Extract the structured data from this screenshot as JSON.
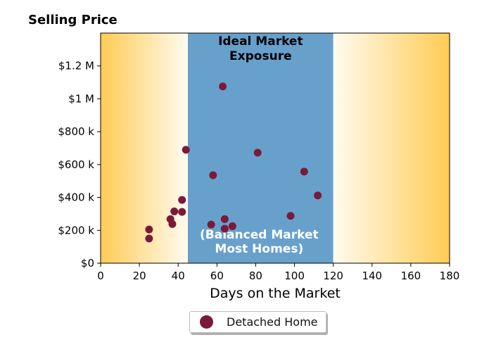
{
  "title": "Selling Price",
  "colors": {
    "point": "#7a1a3a",
    "ideal_band": "#68a0cc",
    "warm_edge": "#ffcc55",
    "warm_fade": "#fffbf0"
  },
  "chart_data": {
    "type": "scatter",
    "title": "Selling Price",
    "xlabel": "Days on the Market",
    "ylabel": "",
    "xlim": [
      0,
      180
    ],
    "ylim": [
      0,
      1400000
    ],
    "xticks": [
      0,
      20,
      40,
      60,
      80,
      100,
      120,
      140,
      160,
      180
    ],
    "yticks": [
      0,
      200000,
      400000,
      600000,
      800000,
      1000000,
      1200000
    ],
    "ytick_labels": [
      "$0",
      "$200 k",
      "$400 k",
      "$600 k",
      "$800 k",
      "$1 M",
      "$1.2 M"
    ],
    "grid": false,
    "legend_position": "bottom-center",
    "regions": [
      {
        "x_start": 0,
        "x_end": 45,
        "style": "warm-fade-right"
      },
      {
        "x_start": 45,
        "x_end": 120,
        "style": "ideal-band",
        "label_top": "Ideal Market\nExposure",
        "label_bottom": "(Balanced Market\nMost Homes)"
      },
      {
        "x_start": 120,
        "x_end": 180,
        "style": "warm-fade-left"
      }
    ],
    "series": [
      {
        "name": "Detached Home",
        "points": [
          {
            "x": 25,
            "y": 150000
          },
          {
            "x": 25,
            "y": 205000
          },
          {
            "x": 36,
            "y": 268000
          },
          {
            "x": 37,
            "y": 238000
          },
          {
            "x": 38,
            "y": 315000
          },
          {
            "x": 42,
            "y": 385000
          },
          {
            "x": 42,
            "y": 312000
          },
          {
            "x": 44,
            "y": 690000
          },
          {
            "x": 57,
            "y": 235000
          },
          {
            "x": 58,
            "y": 535000
          },
          {
            "x": 63,
            "y": 1075000
          },
          {
            "x": 64,
            "y": 268000
          },
          {
            "x": 64,
            "y": 210000
          },
          {
            "x": 68,
            "y": 225000
          },
          {
            "x": 81,
            "y": 672000
          },
          {
            "x": 98,
            "y": 288000
          },
          {
            "x": 105,
            "y": 557000
          },
          {
            "x": 112,
            "y": 412000
          }
        ]
      }
    ]
  }
}
